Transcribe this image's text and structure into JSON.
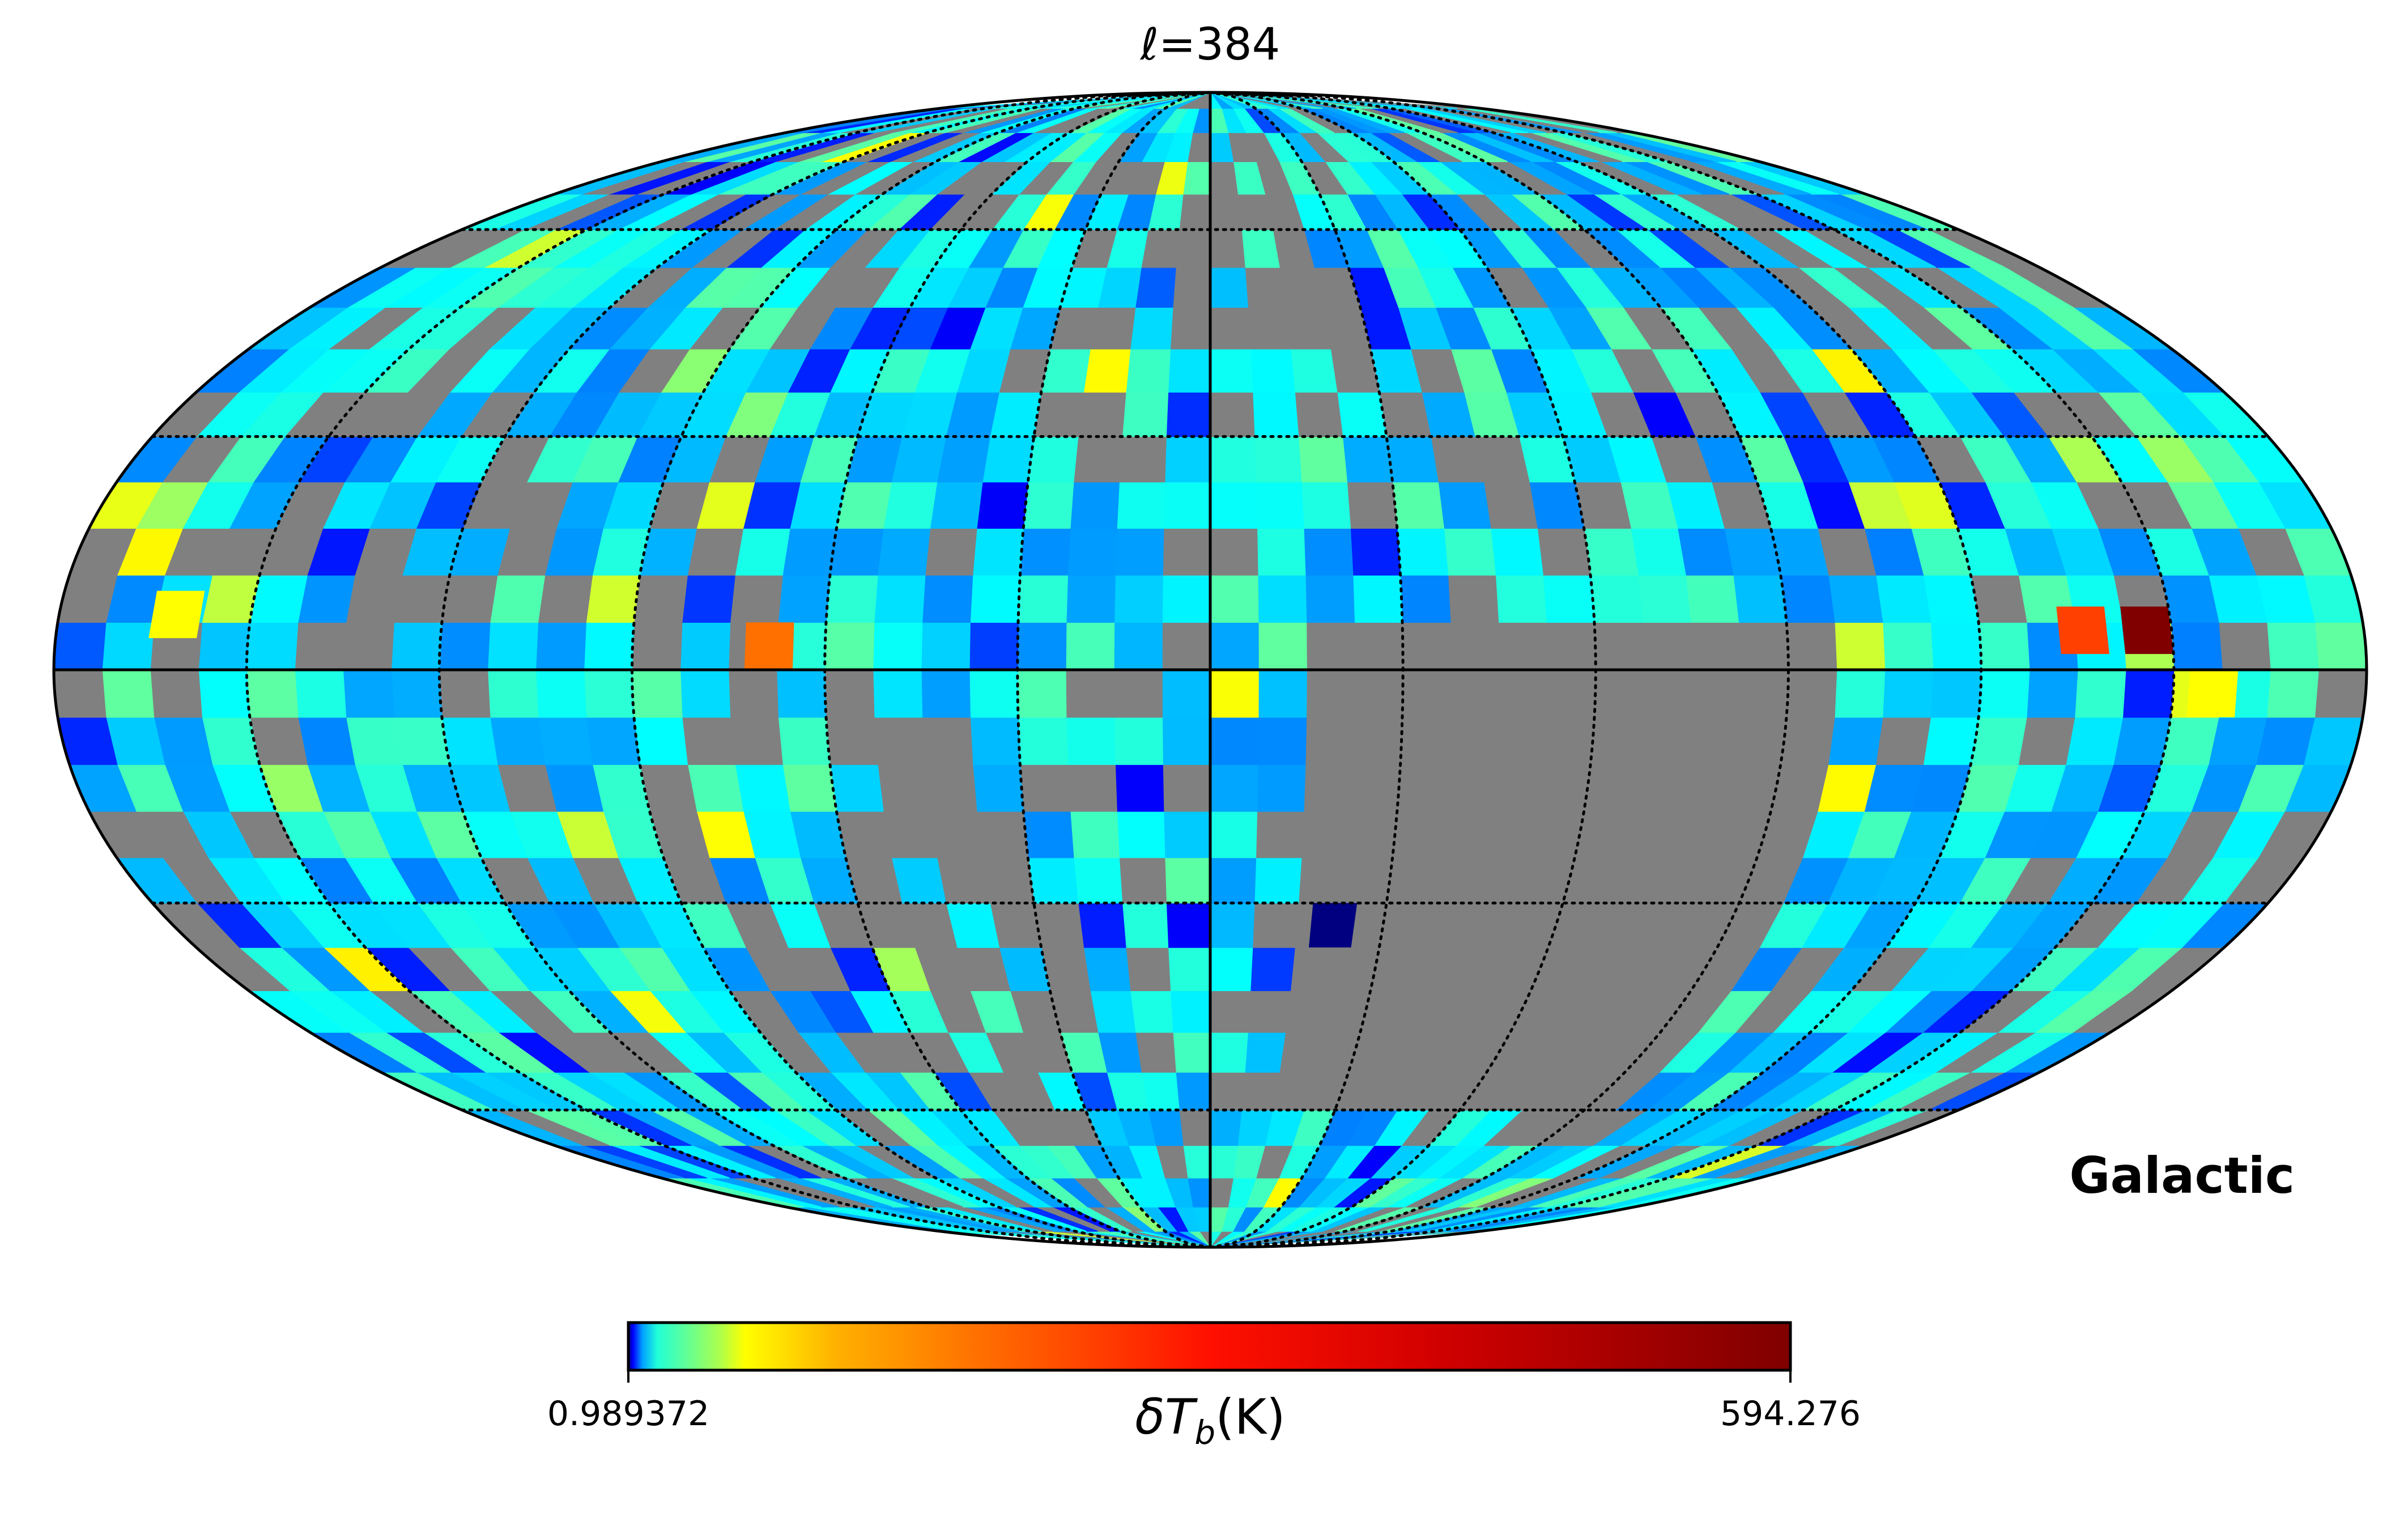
{
  "chart_data": {
    "type": "heatmap",
    "projection": "mollweide",
    "title": "ℓ=384",
    "coordinate_system": "Galactic",
    "colormap": "jet",
    "colorbar": {
      "min_label": "0.989372",
      "max_label": "594.276",
      "label_symbol": "δT",
      "label_subscript": "b",
      "label_unit": "(K)",
      "min": 0.989372,
      "max": 594.276
    },
    "masked_color": "#808080",
    "graticule": {
      "meridian_step_deg": 30,
      "parallel_step_deg": 30,
      "style": "dotted"
    }
  }
}
